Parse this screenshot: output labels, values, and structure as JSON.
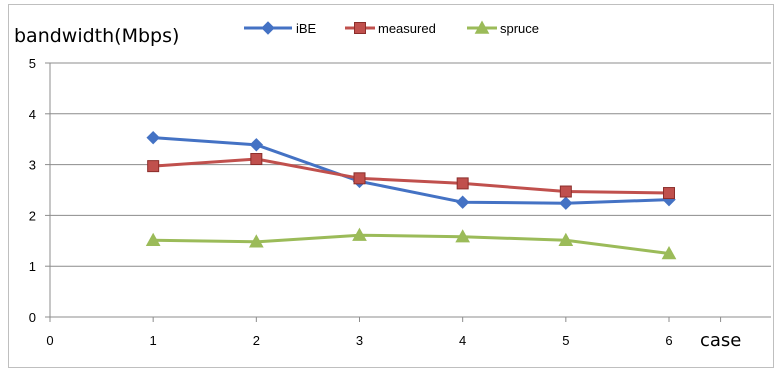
{
  "chart_data": {
    "type": "line",
    "ylabel": "bandwidth(Mbps)",
    "xlabel": "case",
    "x": [
      1,
      2,
      3,
      4,
      5,
      6
    ],
    "xlim": [
      0,
      6.0
    ],
    "ylim": [
      0,
      5
    ],
    "x_ticks": [
      "0",
      "1",
      "2",
      "3",
      "4",
      "5",
      "6"
    ],
    "y_ticks": [
      "0",
      "1",
      "2",
      "3",
      "4",
      "5"
    ],
    "grid": "horizontal",
    "legend_position": "top",
    "series": [
      {
        "name": "iBE",
        "color": "#4472C4",
        "marker": "diamond",
        "values": [
          3.53,
          3.39,
          2.67,
          2.26,
          2.24,
          2.31
        ]
      },
      {
        "name": "measured",
        "color": "#C0504D",
        "marker": "square",
        "values": [
          2.97,
          3.11,
          2.73,
          2.63,
          2.47,
          2.44
        ]
      },
      {
        "name": "spruce",
        "color": "#9BBB59",
        "marker": "triangle",
        "values": [
          1.51,
          1.48,
          1.61,
          1.58,
          1.51,
          1.25
        ]
      }
    ]
  }
}
